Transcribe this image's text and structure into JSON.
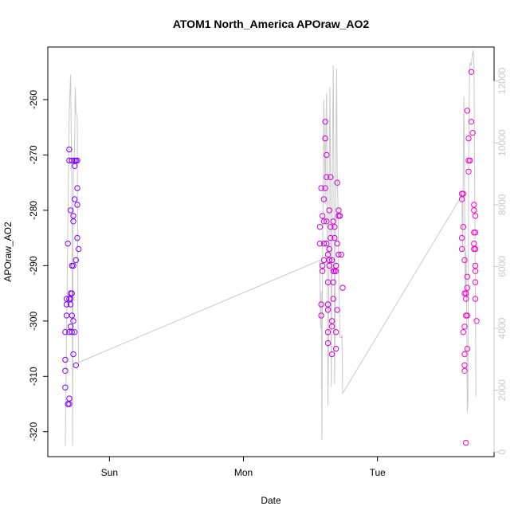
{
  "chart_data": {
    "type": "scatter",
    "title": "ATOM1 North_America APOraw_AO2",
    "xlabel": "Date",
    "ylabel": "APOraw_AO2",
    "x_unit": "day",
    "xlim": [
      -0.46,
      2.87
    ],
    "ylim": [
      -324.5,
      -250.5
    ],
    "y2lim": [
      -150,
      13100
    ],
    "x_ticks": [
      {
        "value": 0,
        "label": "Sun"
      },
      {
        "value": 1,
        "label": "Mon"
      },
      {
        "value": 2,
        "label": "Tue"
      }
    ],
    "y_ticks": [
      -320,
      -310,
      -300,
      -290,
      -280,
      -270,
      -260
    ],
    "y2_ticks": [
      0,
      2000,
      4000,
      6000,
      8000,
      10000,
      12000
    ],
    "grid": false,
    "legend": "none",
    "colors": {
      "points_early": "#7f00ff",
      "points_late": "#ff00cc",
      "right_axis_line": "#c8c8c8",
      "right_axis_text": "#c8c8c8",
      "frame": "#000000"
    },
    "series": [
      {
        "kind": "points",
        "axis": "left",
        "points": [
          [
            -0.33,
            -312
          ],
          [
            -0.33,
            -309
          ],
          [
            -0.33,
            -307
          ],
          [
            -0.33,
            -302
          ],
          [
            -0.32,
            -299
          ],
          [
            -0.32,
            -297
          ],
          [
            -0.32,
            -296
          ],
          [
            -0.31,
            -286
          ],
          [
            -0.31,
            -315
          ],
          [
            -0.3,
            -314
          ],
          [
            -0.3,
            -315
          ],
          [
            -0.3,
            -302
          ],
          [
            -0.3,
            -296
          ],
          [
            -0.3,
            -271
          ],
          [
            -0.3,
            -269
          ],
          [
            -0.29,
            -280
          ],
          [
            -0.29,
            -295
          ],
          [
            -0.29,
            -296
          ],
          [
            -0.29,
            -297
          ],
          [
            -0.29,
            -301
          ],
          [
            -0.28,
            -299
          ],
          [
            -0.28,
            -302
          ],
          [
            -0.28,
            -290
          ],
          [
            -0.28,
            -271
          ],
          [
            -0.28,
            -295
          ],
          [
            -0.27,
            -281
          ],
          [
            -0.27,
            -282
          ],
          [
            -0.27,
            -300
          ],
          [
            -0.27,
            -306
          ],
          [
            -0.27,
            -290
          ],
          [
            -0.26,
            -278
          ],
          [
            -0.26,
            -271
          ],
          [
            -0.26,
            -272
          ],
          [
            -0.25,
            -271
          ],
          [
            -0.25,
            -308
          ],
          [
            -0.25,
            -289
          ],
          [
            -0.24,
            -285
          ],
          [
            -0.24,
            -276
          ],
          [
            -0.24,
            -279
          ],
          [
            -0.23,
            -287
          ],
          [
            -0.24,
            -271
          ],
          [
            -0.26,
            -302
          ],
          [
            1.57,
            -283
          ],
          [
            1.57,
            -286
          ],
          [
            1.58,
            -276
          ],
          [
            1.58,
            -299
          ],
          [
            1.58,
            -297
          ],
          [
            1.59,
            -291
          ],
          [
            1.59,
            -290
          ],
          [
            1.59,
            -281
          ],
          [
            1.6,
            -282
          ],
          [
            1.6,
            -289
          ],
          [
            1.6,
            -286
          ],
          [
            1.6,
            -278
          ],
          [
            1.61,
            -276
          ],
          [
            1.61,
            -267
          ],
          [
            1.61,
            -264
          ],
          [
            1.62,
            -270
          ],
          [
            1.62,
            -274
          ],
          [
            1.62,
            -286
          ],
          [
            1.62,
            -282
          ],
          [
            1.63,
            -288
          ],
          [
            1.63,
            -298
          ],
          [
            1.63,
            -297
          ],
          [
            1.63,
            -293
          ],
          [
            1.63,
            -302
          ],
          [
            1.63,
            -304
          ],
          [
            1.64,
            -289
          ],
          [
            1.64,
            -290
          ],
          [
            1.64,
            -287
          ],
          [
            1.64,
            -280
          ],
          [
            1.65,
            -274
          ],
          [
            1.65,
            -283
          ],
          [
            1.65,
            -285
          ],
          [
            1.66,
            -300
          ],
          [
            1.66,
            -301
          ],
          [
            1.66,
            -306
          ],
          [
            1.66,
            -289
          ],
          [
            1.67,
            -293
          ],
          [
            1.67,
            -296
          ],
          [
            1.67,
            -291
          ],
          [
            1.67,
            -282
          ],
          [
            1.68,
            -291
          ],
          [
            1.68,
            -285
          ],
          [
            1.68,
            -283
          ],
          [
            1.69,
            -290
          ],
          [
            1.69,
            -302
          ],
          [
            1.69,
            -305
          ],
          [
            1.69,
            -291
          ],
          [
            1.7,
            -298
          ],
          [
            1.7,
            -275
          ],
          [
            1.7,
            -286
          ],
          [
            1.71,
            -288
          ],
          [
            1.71,
            -281
          ],
          [
            1.71,
            -281
          ],
          [
            1.71,
            -280
          ],
          [
            1.72,
            -281
          ],
          [
            1.73,
            -288
          ],
          [
            1.74,
            -294
          ],
          [
            2.63,
            -287
          ],
          [
            2.63,
            -285
          ],
          [
            2.63,
            -277
          ],
          [
            2.63,
            -278
          ],
          [
            2.64,
            -302
          ],
          [
            2.64,
            -277
          ],
          [
            2.64,
            -283
          ],
          [
            2.65,
            -289
          ],
          [
            2.65,
            -301
          ],
          [
            2.65,
            -295
          ],
          [
            2.65,
            -308
          ],
          [
            2.65,
            -306
          ],
          [
            2.65,
            -309
          ],
          [
            2.66,
            -322
          ],
          [
            2.66,
            -295
          ],
          [
            2.66,
            -299
          ],
          [
            2.66,
            -296
          ],
          [
            2.67,
            -305
          ],
          [
            2.67,
            -294
          ],
          [
            2.67,
            -292
          ],
          [
            2.67,
            -299
          ],
          [
            2.67,
            -262
          ],
          [
            2.68,
            -271
          ],
          [
            2.68,
            -267
          ],
          [
            2.68,
            -273
          ],
          [
            2.69,
            -271
          ],
          [
            2.7,
            -255
          ],
          [
            2.7,
            -264
          ],
          [
            2.71,
            -266
          ],
          [
            2.72,
            -279
          ],
          [
            2.72,
            -280
          ],
          [
            2.72,
            -284
          ],
          [
            2.72,
            -286
          ],
          [
            2.72,
            -287
          ],
          [
            2.73,
            -290
          ],
          [
            2.73,
            -291
          ],
          [
            2.73,
            -293
          ],
          [
            2.73,
            -296
          ],
          [
            2.74,
            -300
          ],
          [
            2.73,
            -287
          ],
          [
            2.73,
            -281
          ],
          [
            2.73,
            -284
          ]
        ]
      },
      {
        "kind": "line",
        "axis": "right",
        "points": [
          [
            -0.33,
            200
          ],
          [
            -0.31,
            7500
          ],
          [
            -0.3,
            11000
          ],
          [
            -0.29,
            12200
          ],
          [
            -0.28,
            8200
          ],
          [
            -0.275,
            200
          ],
          [
            -0.27,
            9000
          ],
          [
            -0.26,
            9800
          ],
          [
            -0.255,
            11800
          ],
          [
            -0.25,
            11000
          ],
          [
            -0.24,
            10800
          ],
          [
            -0.235,
            4500
          ],
          [
            -0.23,
            2900
          ],
          [
            1.57,
            6200
          ],
          [
            1.575,
            4000
          ],
          [
            1.58,
            5200
          ],
          [
            1.585,
            400
          ],
          [
            1.59,
            6000
          ],
          [
            1.6,
            11400
          ],
          [
            1.605,
            9800
          ],
          [
            1.61,
            8000
          ],
          [
            1.615,
            10400
          ],
          [
            1.62,
            11600
          ],
          [
            1.625,
            7400
          ],
          [
            1.63,
            1500
          ],
          [
            1.635,
            3400
          ],
          [
            1.64,
            9400
          ],
          [
            1.645,
            11800
          ],
          [
            1.65,
            9000
          ],
          [
            1.655,
            2100
          ],
          [
            1.66,
            6400
          ],
          [
            1.665,
            10200
          ],
          [
            1.67,
            12500
          ],
          [
            1.675,
            9000
          ],
          [
            1.68,
            2200
          ],
          [
            1.685,
            5000
          ],
          [
            1.69,
            10300
          ],
          [
            1.695,
            12400
          ],
          [
            1.7,
            9000
          ],
          [
            1.705,
            8000
          ],
          [
            1.71,
            6000
          ],
          [
            1.72,
            3700
          ],
          [
            1.73,
            3700
          ],
          [
            1.735,
            3800
          ],
          [
            1.74,
            1900
          ],
          [
            2.63,
            8300
          ],
          [
            2.635,
            6500
          ],
          [
            2.64,
            9000
          ],
          [
            2.645,
            11500
          ],
          [
            2.65,
            8200
          ],
          [
            2.655,
            5000
          ],
          [
            2.66,
            6500
          ],
          [
            2.665,
            4900
          ],
          [
            2.67,
            1300
          ],
          [
            2.675,
            1700
          ],
          [
            2.68,
            8700
          ],
          [
            2.685,
            11600
          ],
          [
            2.69,
            12600
          ],
          [
            2.7,
            12500
          ],
          [
            2.705,
            12800
          ],
          [
            2.71,
            12900
          ],
          [
            2.715,
            13000
          ],
          [
            2.72,
            12400
          ],
          [
            2.725,
            9000
          ],
          [
            2.73,
            5000
          ],
          [
            2.735,
            1800
          ]
        ]
      }
    ]
  }
}
